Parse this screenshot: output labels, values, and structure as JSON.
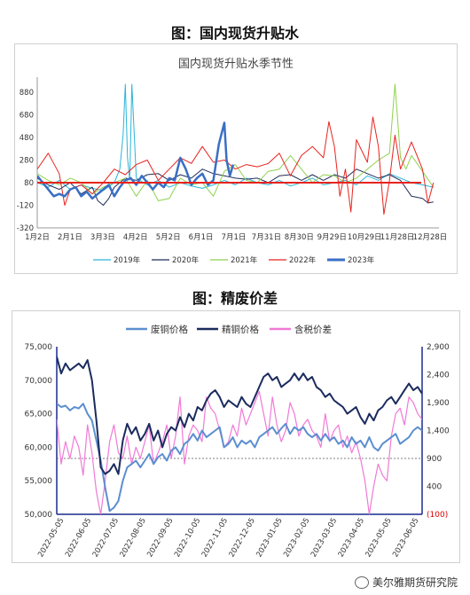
{
  "figure1": {
    "heading": "图：国内现货升贴水",
    "chart_title": "国内现货升贴水季节性"
  },
  "figure2": {
    "heading": "图：精废价差"
  },
  "watermark": "美尔雅期货研究院",
  "chart_data": [
    {
      "type": "line",
      "title": "国内现货升贴水季节性",
      "y_ticks": [
        -320,
        -120,
        80,
        280,
        480,
        680,
        880
      ],
      "ylim": [
        -320,
        950
      ],
      "x_ticks": [
        "1月2日",
        "2月1日",
        "3月3日",
        "4月2日",
        "5月2日",
        "6月1日",
        "7月1日",
        "7月31日",
        "8月30日",
        "9月29日",
        "10月29日",
        "11月28日",
        "12月28日"
      ],
      "xlim": [
        0,
        365
      ],
      "reference_line": 80,
      "legend_position": "bottom",
      "series": [
        {
          "name": "2019年",
          "color": "#2bb5d8",
          "width": 1,
          "x": [
            0,
            10,
            20,
            30,
            40,
            50,
            60,
            70,
            75,
            78,
            80,
            82,
            84,
            86,
            90,
            100,
            110,
            120,
            130,
            140,
            150,
            160,
            170,
            180,
            190,
            200,
            210,
            220,
            230,
            240,
            250,
            260,
            270,
            280,
            290,
            300,
            310,
            320,
            330,
            340,
            350,
            360
          ],
          "y": [
            80,
            40,
            100,
            20,
            60,
            30,
            10,
            80,
            200,
            500,
            950,
            300,
            100,
            950,
            120,
            60,
            100,
            40,
            80,
            50,
            30,
            60,
            100,
            60,
            120,
            80,
            60,
            100,
            50,
            80,
            120,
            60,
            80,
            100,
            60,
            140,
            100,
            160,
            120,
            80,
            60,
            40
          ]
        },
        {
          "name": "2020年",
          "color": "#1f2d5a",
          "width": 1,
          "x": [
            0,
            10,
            20,
            30,
            40,
            50,
            55,
            60,
            65,
            70,
            80,
            90,
            100,
            110,
            120,
            130,
            140,
            150,
            160,
            170,
            180,
            190,
            200,
            210,
            220,
            230,
            240,
            250,
            260,
            270,
            280,
            290,
            300,
            310,
            320,
            330,
            340,
            350,
            355,
            360
          ],
          "y": [
            120,
            60,
            20,
            80,
            -20,
            40,
            -80,
            -120,
            -60,
            40,
            120,
            100,
            150,
            160,
            100,
            150,
            120,
            200,
            160,
            140,
            120,
            110,
            120,
            80,
            140,
            150,
            100,
            150,
            100,
            150,
            120,
            200,
            160,
            120,
            150,
            100,
            -40,
            -60,
            -100,
            -90
          ]
        },
        {
          "name": "2021年",
          "color": "#8fd14f",
          "width": 1,
          "x": [
            0,
            10,
            20,
            30,
            40,
            50,
            60,
            70,
            80,
            90,
            100,
            110,
            120,
            130,
            140,
            150,
            160,
            170,
            180,
            190,
            200,
            210,
            220,
            230,
            240,
            250,
            260,
            270,
            280,
            290,
            300,
            310,
            320,
            325,
            330,
            335,
            340,
            350,
            360
          ],
          "y": [
            160,
            100,
            60,
            120,
            80,
            -20,
            40,
            80,
            120,
            -40,
            100,
            -80,
            -60,
            120,
            60,
            80,
            -40,
            180,
            240,
            100,
            80,
            180,
            200,
            320,
            200,
            80,
            150,
            140,
            80,
            120,
            200,
            280,
            340,
            950,
            300,
            200,
            320,
            180,
            40
          ]
        },
        {
          "name": "2022年",
          "color": "#e8231e",
          "width": 1,
          "x": [
            0,
            10,
            20,
            25,
            30,
            40,
            50,
            60,
            70,
            80,
            90,
            100,
            110,
            120,
            130,
            140,
            150,
            160,
            170,
            180,
            190,
            200,
            210,
            220,
            230,
            240,
            250,
            260,
            265,
            270,
            275,
            280,
            285,
            290,
            300,
            305,
            310,
            315,
            320,
            325,
            330,
            340,
            350,
            355,
            360
          ],
          "y": [
            200,
            340,
            160,
            -120,
            20,
            60,
            -20,
            80,
            200,
            150,
            240,
            280,
            100,
            200,
            300,
            250,
            400,
            260,
            280,
            200,
            240,
            220,
            250,
            340,
            140,
            320,
            400,
            300,
            620,
            400,
            -40,
            200,
            -180,
            460,
            260,
            660,
            400,
            -200,
            100,
            500,
            200,
            440,
            200,
            -100,
            80
          ]
        },
        {
          "name": "2023年",
          "color": "#3a6fc4",
          "width": 2.5,
          "x": [
            0,
            5,
            10,
            15,
            20,
            25,
            30,
            35,
            40,
            45,
            50,
            55,
            60,
            65,
            70,
            75,
            80,
            85,
            90,
            95,
            100,
            105,
            110,
            115,
            120,
            125,
            130,
            135,
            140,
            145,
            150,
            155,
            160,
            165,
            170,
            172,
            175,
            178
          ],
          "y": [
            140,
            80,
            20,
            -40,
            -20,
            -40,
            20,
            40,
            -40,
            0,
            -60,
            -20,
            20,
            60,
            -40,
            40,
            100,
            120,
            60,
            140,
            80,
            20,
            80,
            40,
            120,
            100,
            300,
            200,
            60,
            120,
            160,
            60,
            100,
            420,
            610,
            280,
            140,
            240
          ]
        }
      ]
    },
    {
      "type": "line",
      "title": "",
      "x_ticks": [
        "2022-05-05",
        "2022-06-05",
        "2022-07-05",
        "2022-08-05",
        "2022-09-05",
        "2022-10-05",
        "2022-11-05",
        "2022-12-05",
        "2023-01-05",
        "2023-02-05",
        "2023-03-05",
        "2023-04-05",
        "2023-05-05",
        "2023-06-05"
      ],
      "y_left_ticks": [
        "50,000",
        "55,000",
        "60,000",
        "65,000",
        "70,000",
        "75,000"
      ],
      "ylim_left": [
        50000,
        75000
      ],
      "y_right_ticks": [
        "(100)",
        "400",
        "900",
        "1,400",
        "1,900",
        "2,400",
        "2,900"
      ],
      "ylim_right": [
        -100,
        2900
      ],
      "reference_line_right": 900,
      "legend_position": "top",
      "series": [
        {
          "name": "废铜价格",
          "color": "#5b8fd0",
          "axis": "left",
          "width": 2,
          "x": [
            0,
            5,
            10,
            15,
            20,
            25,
            30,
            35,
            40,
            45,
            50,
            55,
            60,
            65,
            70,
            75,
            80,
            85,
            90,
            95,
            100,
            105,
            110,
            115,
            120,
            125,
            130,
            135,
            140,
            145,
            150,
            155,
            160,
            165,
            170,
            175,
            180,
            185,
            190,
            195,
            200,
            205,
            210,
            215,
            220,
            225,
            230,
            235,
            240,
            245,
            250,
            255,
            260,
            265,
            270,
            275,
            280,
            285,
            290,
            295,
            300,
            305,
            310,
            315,
            320,
            325,
            330,
            335,
            340,
            345,
            350,
            355,
            360,
            365,
            370,
            375,
            380,
            385,
            390,
            395,
            400,
            405,
            410,
            415
          ],
          "y": [
            66500,
            66000,
            66200,
            65500,
            66000,
            65800,
            66500,
            65000,
            64000,
            61000,
            58000,
            54000,
            50500,
            51000,
            52000,
            55000,
            57000,
            57500,
            58000,
            57000,
            58000,
            59000,
            57500,
            58500,
            59000,
            58000,
            59500,
            60000,
            59000,
            60500,
            61000,
            62000,
            61000,
            62500,
            61500,
            62000,
            62500,
            63000,
            60000,
            60500,
            61500,
            60000,
            61000,
            60500,
            61000,
            60000,
            61500,
            62000,
            62500,
            63000,
            62000,
            62800,
            63500,
            62000,
            63000,
            62500,
            63000,
            62000,
            61500,
            62000,
            61000,
            62000,
            61000,
            61500,
            60500,
            61000,
            60000,
            61500,
            60500,
            61000,
            60000,
            61500,
            60000,
            59500,
            60500,
            61000,
            61500,
            62000,
            60500,
            61000,
            61500,
            62500,
            63000,
            62500
          ]
        },
        {
          "name": "精铜价格",
          "color": "#1b2b5e",
          "axis": "left",
          "width": 2,
          "x": [
            0,
            5,
            10,
            15,
            20,
            25,
            30,
            35,
            40,
            45,
            50,
            55,
            60,
            65,
            70,
            75,
            80,
            85,
            90,
            95,
            100,
            105,
            110,
            115,
            120,
            125,
            130,
            135,
            140,
            145,
            150,
            155,
            160,
            165,
            170,
            175,
            180,
            185,
            190,
            195,
            200,
            205,
            210,
            215,
            220,
            225,
            230,
            235,
            240,
            245,
            250,
            255,
            260,
            265,
            270,
            275,
            280,
            285,
            290,
            295,
            300,
            305,
            310,
            315,
            320,
            325,
            330,
            335,
            340,
            345,
            350,
            355,
            360,
            365,
            370,
            375,
            380,
            385,
            390,
            395,
            400,
            405,
            410,
            415
          ],
          "y": [
            73500,
            71000,
            72500,
            71500,
            72000,
            72500,
            71800,
            73000,
            70000,
            64000,
            57000,
            56000,
            56500,
            57500,
            56000,
            61000,
            63500,
            62000,
            63000,
            61000,
            62000,
            63500,
            61000,
            62500,
            60000,
            62000,
            63000,
            62500,
            64500,
            63000,
            65000,
            64000,
            66000,
            65500,
            67000,
            68000,
            68500,
            67500,
            66000,
            67000,
            66500,
            66000,
            67500,
            66500,
            66000,
            67500,
            69000,
            70500,
            71000,
            70000,
            70500,
            69000,
            69500,
            70000,
            71000,
            70000,
            71000,
            70000,
            70500,
            69000,
            68500,
            67500,
            68000,
            67000,
            66500,
            66000,
            65000,
            65500,
            66000,
            64500,
            63500,
            65000,
            64000,
            65500,
            66000,
            67000,
            67500,
            66500,
            67500,
            68500,
            69500,
            68500,
            69000,
            68000
          ]
        },
        {
          "name": "含税价差",
          "color": "#f07ad6",
          "axis": "right",
          "width": 1.2,
          "x": [
            0,
            5,
            10,
            15,
            20,
            25,
            30,
            35,
            40,
            45,
            50,
            55,
            60,
            65,
            70,
            75,
            80,
            85,
            90,
            95,
            100,
            105,
            110,
            115,
            120,
            125,
            130,
            135,
            140,
            145,
            150,
            155,
            160,
            165,
            170,
            175,
            180,
            185,
            190,
            195,
            200,
            205,
            210,
            215,
            220,
            225,
            230,
            235,
            240,
            245,
            250,
            255,
            260,
            265,
            270,
            275,
            280,
            285,
            290,
            295,
            300,
            305,
            310,
            315,
            320,
            325,
            330,
            335,
            340,
            345,
            350,
            355,
            360,
            365,
            370,
            375,
            380,
            385,
            390,
            395,
            400,
            405,
            410,
            415
          ],
          "y": [
            1600,
            800,
            1200,
            900,
            1300,
            1100,
            600,
            1500,
            1000,
            300,
            -100,
            500,
            1200,
            1500,
            1000,
            900,
            1300,
            800,
            1100,
            900,
            1200,
            1500,
            800,
            1000,
            1200,
            1500,
            900,
            1300,
            2000,
            800,
            1300,
            1500,
            1400,
            1200,
            2000,
            1800,
            1700,
            1400,
            1100,
            1200,
            1500,
            1300,
            1800,
            1500,
            1700,
            1900,
            2100,
            1700,
            1300,
            2000,
            1500,
            1200,
            1400,
            1900,
            1700,
            1300,
            1500,
            1600,
            1400,
            1300,
            1100,
            1700,
            1200,
            1400,
            1500,
            1100,
            1300,
            1000,
            1200,
            900,
            500,
            -100,
            400,
            800,
            600,
            500,
            1300,
            1700,
            1800,
            1500,
            2000,
            1900,
            1700,
            1600
          ]
        }
      ]
    }
  ]
}
